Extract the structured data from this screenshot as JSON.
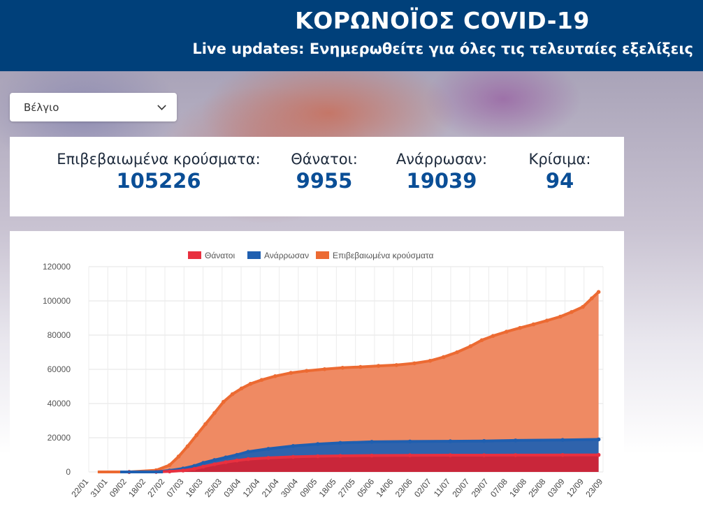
{
  "header": {
    "title": "ΚΟΡΩΝΟΪΟΣ COVID-19",
    "subtitle": "Live updates: Ενημερωθείτε για όλες τις τελευταίες εξελίξεις",
    "bg_color": "#00407a"
  },
  "country_select": {
    "value": "Βέλγιο",
    "icon": "chevron-down-icon"
  },
  "stats": {
    "confirmed_label": "Επιβεβαιωμένα κρούσματα:",
    "confirmed_value": "105226",
    "deaths_label": "Θάνατοι:",
    "deaths_value": "9955",
    "recovered_label": "Ανάρρωσαν:",
    "recovered_value": "19039",
    "critical_label": "Κρίσιμα:",
    "critical_value": "94"
  },
  "chart_data": {
    "type": "area",
    "title": "",
    "xlabel": "",
    "ylabel": "",
    "ylim": [
      0,
      120000
    ],
    "yticks": [
      "0",
      "20000",
      "40000",
      "60000",
      "80000",
      "100000",
      "120000"
    ],
    "x_tick_labels": [
      "22/01",
      "31/01",
      "09/02",
      "18/02",
      "27/02",
      "07/03",
      "16/03",
      "25/03",
      "03/04",
      "12/04",
      "21/04",
      "30/04",
      "09/05",
      "18/05",
      "27/05",
      "05/06",
      "14/06",
      "23/06",
      "02/07",
      "11/07",
      "20/07",
      "29/07",
      "07/08",
      "16/08",
      "25/08",
      "03/09",
      "12/09",
      "23/09"
    ],
    "legend_position": "top",
    "grid": true,
    "series": [
      {
        "name": "Θάνατοι",
        "color": "#e8303f",
        "fill": "#c9263a",
        "x": [
          18,
          30,
          36,
          42,
          47,
          51,
          56,
          61,
          66,
          71,
          80,
          91,
          102,
          112,
          126,
          143,
          161,
          176,
          190,
          211,
          227
        ],
        "y": [
          0,
          50,
          300,
          800,
          1800,
          3100,
          4500,
          5700,
          6700,
          7500,
          8200,
          8800,
          9200,
          9400,
          9600,
          9700,
          9780,
          9800,
          9850,
          9900,
          9955
        ]
      },
      {
        "name": "Ανάρρωσαν",
        "color": "#1f5fb0",
        "fill": "#2f63ac",
        "x": [
          18,
          30,
          36,
          42,
          47,
          51,
          56,
          61,
          66,
          71,
          80,
          91,
          102,
          112,
          126,
          143,
          161,
          176,
          190,
          211,
          227
        ],
        "y": [
          0,
          100,
          800,
          2000,
          3500,
          5300,
          7000,
          8500,
          10000,
          11800,
          13500,
          15200,
          16300,
          17000,
          17600,
          17800,
          17900,
          18100,
          18400,
          18700,
          19039
        ]
      },
      {
        "name": "Επιβεβαιωμένα κρούσματα",
        "color": "#ec6a32",
        "fill": "#ef8a63",
        "x": [
          18,
          30,
          36,
          40,
          44,
          48,
          52,
          56,
          60,
          64,
          68,
          72,
          77,
          83,
          90,
          97,
          105,
          113,
          121,
          129,
          137,
          145,
          152,
          158,
          164,
          170,
          175,
          180,
          186,
          192,
          198,
          204,
          210,
          215,
          220,
          224,
          227
        ],
        "y": [
          0,
          1000,
          4000,
          9000,
          15000,
          21500,
          28000,
          34500,
          41000,
          45500,
          48800,
          51500,
          53800,
          56000,
          57900,
          59100,
          60100,
          60900,
          61400,
          62000,
          62500,
          63500,
          65000,
          67200,
          70000,
          73500,
          77000,
          79500,
          82000,
          84200,
          86300,
          88500,
          90800,
          93500,
          96500,
          101500,
          105226
        ]
      }
    ]
  }
}
